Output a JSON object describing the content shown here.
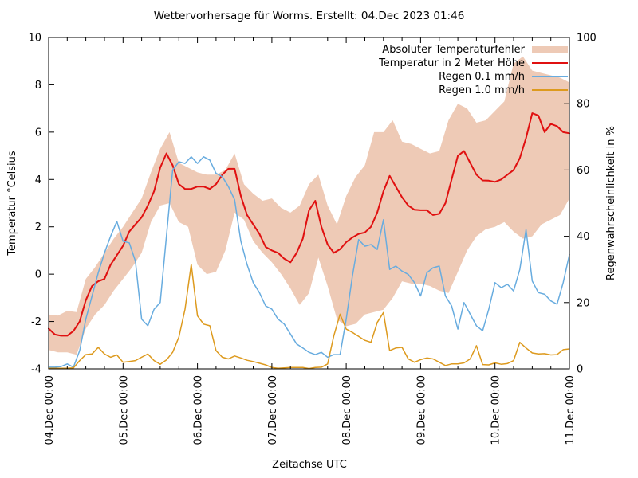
{
  "chart_data": {
    "type": "line",
    "title": "Wettervorhersage für Worms. Erstellt: 04.Dec 2023 01:46",
    "xlabel": "Zeitachse UTC",
    "ylabel_left": "Temperatur °Celsius",
    "ylabel_right": "Regenwahrscheinlichkeit in %",
    "x_axis_start": "04.Dec 2023 00:00 UTC",
    "xlim_hours": [
      0,
      168
    ],
    "ylim_left": [
      -4,
      10
    ],
    "ylim_right": [
      0,
      100
    ],
    "x_tick_hours": [
      0,
      24,
      48,
      72,
      96,
      120,
      144,
      168
    ],
    "x_tick_labels": [
      "04.Dec 00:00",
      "05.Dec 00:00",
      "06.Dec 00:00",
      "07.Dec 00:00",
      "08.Dec 00:00",
      "09.Dec 00:00",
      "10.Dec 00:00",
      "11.Dec 00:00"
    ],
    "x_minor_tick_step_hours": 6,
    "y_left_ticks": [
      -4,
      -2,
      0,
      2,
      4,
      6,
      8,
      10
    ],
    "y_right_ticks": [
      0,
      20,
      40,
      60,
      80,
      100
    ],
    "grid": false,
    "legend_position": "top-right-inside",
    "series": [
      {
        "name": "Absoluter Temperaturfehler",
        "type": "band",
        "axis": "left",
        "unit": "°C",
        "color": "#eecab6",
        "x_step_hours": 3,
        "upper": [
          -1.7,
          -1.75,
          -1.55,
          -1.6,
          -0.2,
          0.3,
          0.9,
          1.5,
          2.0,
          2.6,
          3.2,
          4.3,
          5.3,
          6.0,
          4.7,
          4.5,
          4.3,
          4.2,
          4.2,
          4.4,
          5.1,
          3.8,
          3.4,
          3.1,
          3.2,
          2.8,
          2.6,
          2.9,
          3.8,
          4.2,
          2.9,
          2.1,
          3.3,
          4.1,
          4.6,
          6.0,
          6.0,
          6.5,
          5.6,
          5.5,
          5.3,
          5.1,
          5.2,
          6.5,
          7.2,
          7.0,
          6.4,
          6.5,
          6.9,
          7.3,
          8.9,
          9.2,
          8.6,
          8.5,
          8.4,
          8.3,
          8.1
        ],
        "lower": [
          -3.2,
          -3.3,
          -3.3,
          -3.4,
          -2.3,
          -1.7,
          -1.3,
          -0.7,
          -0.2,
          0.3,
          0.9,
          2.2,
          2.9,
          3.0,
          2.2,
          2.0,
          0.4,
          0.0,
          0.1,
          1.0,
          2.6,
          2.3,
          1.4,
          0.9,
          0.5,
          0.0,
          -0.6,
          -1.3,
          -0.8,
          0.7,
          -0.5,
          -1.9,
          -2.2,
          -2.1,
          -1.7,
          -1.6,
          -1.5,
          -1.0,
          -0.3,
          -0.4,
          -0.4,
          -0.5,
          -0.7,
          -0.8,
          0.1,
          1.0,
          1.6,
          1.9,
          2.0,
          2.2,
          1.8,
          1.5,
          1.6,
          2.1,
          2.3,
          2.5,
          3.2
        ]
      },
      {
        "name": "Temperatur in 2 Meter Höhe",
        "type": "line",
        "axis": "left",
        "unit": "°C",
        "color": "#e01010",
        "x_step_hours": 2,
        "values": [
          -2.3,
          -2.55,
          -2.6,
          -2.6,
          -2.4,
          -2.0,
          -1.1,
          -0.5,
          -0.3,
          -0.2,
          0.4,
          0.8,
          1.2,
          1.8,
          2.1,
          2.4,
          2.9,
          3.5,
          4.5,
          5.1,
          4.6,
          3.8,
          3.6,
          3.6,
          3.7,
          3.7,
          3.6,
          3.8,
          4.2,
          4.45,
          4.45,
          3.3,
          2.5,
          2.1,
          1.7,
          1.15,
          1.0,
          0.9,
          0.65,
          0.5,
          0.9,
          1.5,
          2.7,
          3.1,
          2.0,
          1.25,
          0.9,
          1.05,
          1.35,
          1.55,
          1.7,
          1.76,
          2.0,
          2.6,
          3.5,
          4.15,
          3.7,
          3.25,
          2.9,
          2.72,
          2.7,
          2.7,
          2.5,
          2.55,
          3.0,
          4.0,
          5.0,
          5.2,
          4.7,
          4.2,
          3.96,
          3.95,
          3.9,
          4.0,
          4.2,
          4.4,
          4.9,
          5.75,
          6.8,
          6.7,
          6.0,
          6.35,
          6.25,
          6.0,
          5.95
        ]
      },
      {
        "name": "Regen 0.1 mm/h",
        "type": "line",
        "axis": "right",
        "unit": "%",
        "color": "#68acdf",
        "x_step_hours": 2,
        "values": [
          0.5,
          0.5,
          0.7,
          1.5,
          0.5,
          5.5,
          15,
          22,
          29,
          35,
          40,
          44.5,
          38.5,
          38,
          32.5,
          15,
          13,
          18,
          20,
          40,
          60,
          62.5,
          62,
          64,
          62,
          64,
          63,
          59,
          58,
          55,
          51,
          38.5,
          31.5,
          26,
          23,
          19,
          18,
          15,
          13.5,
          10.5,
          7.5,
          6.3,
          5,
          4.3,
          5,
          3.5,
          4.3,
          4.3,
          15,
          28,
          39,
          37,
          37.5,
          36,
          45,
          30,
          31,
          29.5,
          28.5,
          26,
          22,
          29,
          30.5,
          31,
          22,
          19,
          12,
          20,
          16.5,
          13,
          11.5,
          18,
          26,
          24.5,
          25.5,
          23.5,
          30,
          42,
          26.5,
          23,
          22.5,
          20.5,
          19.5,
          26,
          34.5
        ]
      },
      {
        "name": "Regen 1.0 mm/h",
        "type": "line",
        "axis": "right",
        "unit": "%",
        "color": "#dd9a1e",
        "x_step_hours": 2,
        "values": [
          0.2,
          0.2,
          0.2,
          0.2,
          0.3,
          2.5,
          4.3,
          4.5,
          6.5,
          4.5,
          3.5,
          4.2,
          2.0,
          2.2,
          2.5,
          3.5,
          4.5,
          2.5,
          1.4,
          2.7,
          5.0,
          9.6,
          18,
          31.5,
          16,
          13.5,
          13,
          5.5,
          3.5,
          3.0,
          3.9,
          3.3,
          2.6,
          2.2,
          1.7,
          1.2,
          0.4,
          0.2,
          0.3,
          0.4,
          0.4,
          0.4,
          0.1,
          0.4,
          0.5,
          1.5,
          10,
          16.5,
          12,
          11,
          9.8,
          8.6,
          8.0,
          14,
          17,
          5.5,
          6.3,
          6.5,
          3.0,
          2.0,
          2.8,
          3.3,
          3.0,
          2.0,
          1.0,
          1.5,
          1.5,
          1.8,
          3.0,
          7.0,
          1.3,
          1.2,
          1.8,
          1.4,
          1.6,
          2.5,
          8.0,
          6.3,
          4.8,
          4.5,
          4.6,
          4.2,
          4.3,
          5.8,
          6.0
        ]
      }
    ]
  }
}
